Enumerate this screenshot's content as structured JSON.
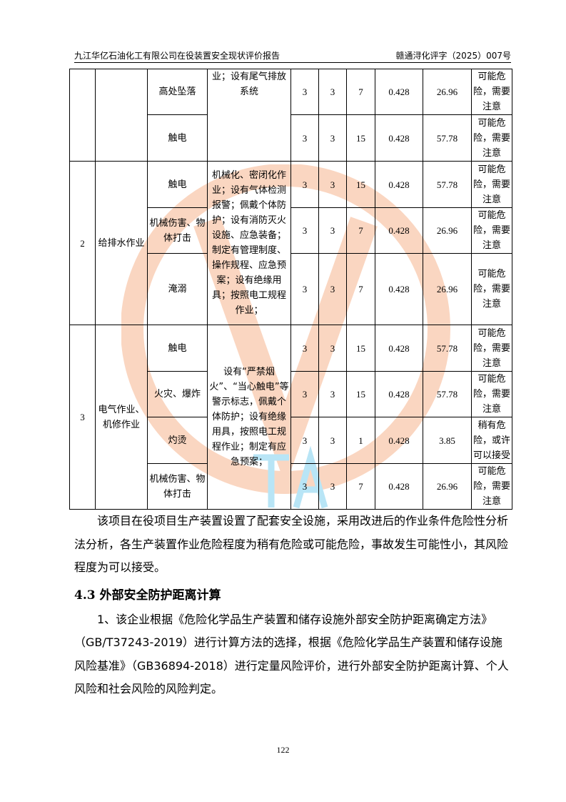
{
  "header": {
    "title": "九江华亿石油化工有限公司在役装置安全现状评价报告",
    "doc_no": "赣通浔化评字（2025）007号"
  },
  "table": {
    "rows": [
      {
        "no": "",
        "job": "",
        "hazard": "高处坠落",
        "L": "3",
        "E": "3",
        "C": "7",
        "k": "0.428",
        "D": "26.96",
        "level": "可能危险，需要注意"
      },
      {
        "hazard": "触电",
        "L": "3",
        "E": "3",
        "C": "15",
        "k": "0.428",
        "D": "57.78",
        "level": "可能危险，需要注意"
      },
      {
        "no": "2",
        "job": "给排水作业",
        "hazard": "触电",
        "L": "3",
        "E": "3",
        "C": "15",
        "k": "0.428",
        "D": "57.78",
        "level": "可能危险，需要注意"
      },
      {
        "hazard": "机械伤害、物体打击",
        "L": "3",
        "E": "3",
        "C": "7",
        "k": "0.428",
        "D": "26.96",
        "level": "可能危险，需要注意"
      },
      {
        "hazard": "淹溺",
        "L": "3",
        "E": "3",
        "C": "7",
        "k": "0.428",
        "D": "26.96",
        "level": "可能危险，需要注意"
      },
      {
        "no": "3",
        "job": "电气作业、机修作业",
        "hazard": "触电",
        "L": "3",
        "E": "3",
        "C": "15",
        "k": "0.428",
        "D": "57.78",
        "level": "可能危险，需要注意"
      },
      {
        "hazard": "火灾、爆炸",
        "L": "3",
        "E": "3",
        "C": "15",
        "k": "0.428",
        "D": "57.78",
        "level": "可能危险，需要注意"
      },
      {
        "hazard": "灼烫",
        "L": "3",
        "E": "3",
        "C": "1",
        "k": "0.428",
        "D": "3.85",
        "level": "稍有危险，或许可以接受"
      },
      {
        "hazard": "机械伤害、物体打击",
        "L": "3",
        "E": "3",
        "C": "7",
        "k": "0.428",
        "D": "26.96",
        "level": "可能危险，需要注意"
      }
    ],
    "measures": [
      "业；设有尾气排放系统",
      "机械化、密闭化作业；设有气体检测报警；佩戴个体防护；设有消防灭火设施、应急装备；制定有管理制度、操作规程、应急预案；设有绝缘用具；按照电工规程作业；",
      "设有“严禁烟火”、“当心触电”等警示标志，佩戴个体防护；设有绝缘用具，按照电工规程作业；制定有应急预案；"
    ]
  },
  "para1": "该项目在役项目生产装置设置了配套安全设施，采用改进后的作业条件危险性分析法分析，各生产装置作业危险程度为稍有危险或可能危险，事故发生可能性小，其风险程度为可以接受。",
  "heading": "4.3 外部安全防护距离计算",
  "para2": "1、该企业根据《危险化学品生产装置和储存设施外部安全防护距离确定方法》（GB/T37243-2019）进行计算方法的选择，根据《危险化学品生产装置和储存设施风险基准》（GB36894-2018）进行定量风险评价，进行外部安全防护距离计算、个人风险和社会风险的风险判定。",
  "page_number": "122",
  "colors": {
    "watermark_orange": "#f7b58f",
    "watermark_blue": "#7fd0f0"
  }
}
